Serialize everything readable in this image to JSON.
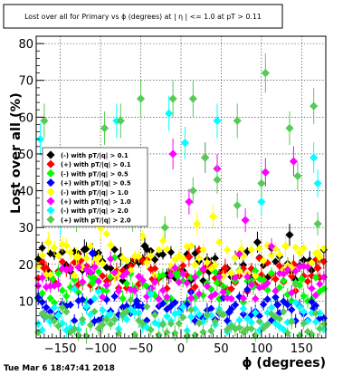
{
  "chart_data": {
    "type": "scatter",
    "title": "Lost over all for Primary vs ϕ (degrees) at |  η | <= 1.0 at pT > 0.11",
    "xlabel": "ϕ (degrees)",
    "ylabel": "Lost over all (%)",
    "xlim": [
      -180,
      180
    ],
    "ylim": [
      0,
      82
    ],
    "grid": true,
    "legend_position": "left",
    "x_ticks": [
      -150,
      -100,
      -50,
      0,
      50,
      100,
      150
    ],
    "y_ticks": [
      10,
      20,
      30,
      40,
      50,
      60,
      70,
      80
    ],
    "x_tick_labels": [
      "−150",
      "−100",
      "−50",
      "0",
      "50",
      "100",
      "150"
    ],
    "y_tick_labels": [
      "10",
      "20",
      "30",
      "40",
      "50",
      "60",
      "70",
      "80"
    ],
    "series": [
      {
        "name": "(-) with pT/|q| > 0.1",
        "color": "#000000",
        "base": 20,
        "highlights": [
          [
            -165,
            18
          ],
          [
            -120,
            24
          ],
          [
            -75,
            22
          ],
          [
            -45,
            25
          ],
          [
            -15,
            17
          ],
          [
            35,
            18
          ],
          [
            95,
            26
          ],
          [
            135,
            28
          ],
          [
            160,
            21
          ]
        ]
      },
      {
        "name": "(+) with pT/|q| > 0.1",
        "color": "#ff0000",
        "base": 17,
        "highlights": [
          [
            -170,
            19
          ],
          [
            -125,
            21
          ],
          [
            -80,
            18
          ],
          [
            -35,
            16
          ],
          [
            10,
            22
          ],
          [
            55,
            19
          ],
          [
            100,
            17
          ],
          [
            140,
            20
          ],
          [
            170,
            19
          ]
        ]
      },
      {
        "name": "(-) with pT/|q| > 0.5",
        "color": "#00ff00",
        "base": 14,
        "highlights": [
          [
            -160,
            16
          ],
          [
            -110,
            15
          ],
          [
            -60,
            13
          ],
          [
            -5,
            17
          ],
          [
            45,
            15
          ],
          [
            90,
            14
          ],
          [
            150,
            16
          ]
        ]
      },
      {
        "name": "(+) with pT/|q| > 0.5",
        "color": "#0000ff",
        "base": 8,
        "highlights": [
          [
            -170,
            6
          ],
          [
            -110,
            23
          ],
          [
            -55,
            10
          ],
          [
            0,
            8
          ],
          [
            60,
            7
          ],
          [
            120,
            9
          ],
          [
            165,
            8
          ]
        ]
      },
      {
        "name": "(-) with pT/|q| > 1.0",
        "color": "#ffff00",
        "base": 21,
        "highlights": [
          [
            -165,
            26
          ],
          [
            -130,
            22
          ],
          [
            -100,
            30
          ],
          [
            -20,
            30
          ],
          [
            20,
            31
          ],
          [
            40,
            33
          ],
          [
            75,
            24
          ],
          [
            130,
            25
          ],
          [
            170,
            23
          ]
        ]
      },
      {
        "name": "(+) with pT/|q| > 1.0",
        "color": "#ff00ff",
        "base": 15,
        "highlights": [
          [
            -95,
            45
          ],
          [
            -10,
            50
          ],
          [
            10,
            37
          ],
          [
            30,
            49
          ],
          [
            45,
            46
          ],
          [
            80,
            32
          ],
          [
            105,
            45
          ],
          [
            140,
            48
          ]
        ]
      },
      {
        "name": "(-) with pT/|q| > 2.0",
        "color": "#00ffff",
        "base": 5,
        "highlights": [
          [
            -175,
            54
          ],
          [
            -150,
            31
          ],
          [
            -110,
            37
          ],
          [
            -80,
            59
          ],
          [
            -15,
            61
          ],
          [
            5,
            53
          ],
          [
            45,
            59
          ],
          [
            100,
            37
          ],
          [
            165,
            49
          ],
          [
            170,
            42
          ]
        ]
      },
      {
        "name": "(+) with pT/|q| > 2.0",
        "color": "#55cc55",
        "base": 4,
        "highlights": [
          [
            -170,
            59
          ],
          [
            -130,
            32
          ],
          [
            -95,
            57
          ],
          [
            -75,
            59
          ],
          [
            -60,
            32
          ],
          [
            -50,
            65
          ],
          [
            -20,
            30
          ],
          [
            -10,
            65
          ],
          [
            15,
            65
          ],
          [
            15,
            40
          ],
          [
            30,
            49
          ],
          [
            45,
            43
          ],
          [
            70,
            59
          ],
          [
            70,
            36
          ],
          [
            100,
            42
          ],
          [
            105,
            72
          ],
          [
            135,
            57
          ],
          [
            145,
            44
          ],
          [
            165,
            63
          ],
          [
            170,
            31
          ]
        ]
      }
    ]
  },
  "footer": {
    "timestamp": "Tue Mar  6 18:47:41 2018"
  },
  "colors": {
    "background": "#ffffff",
    "frame": "#000000",
    "grid": "#000000"
  }
}
